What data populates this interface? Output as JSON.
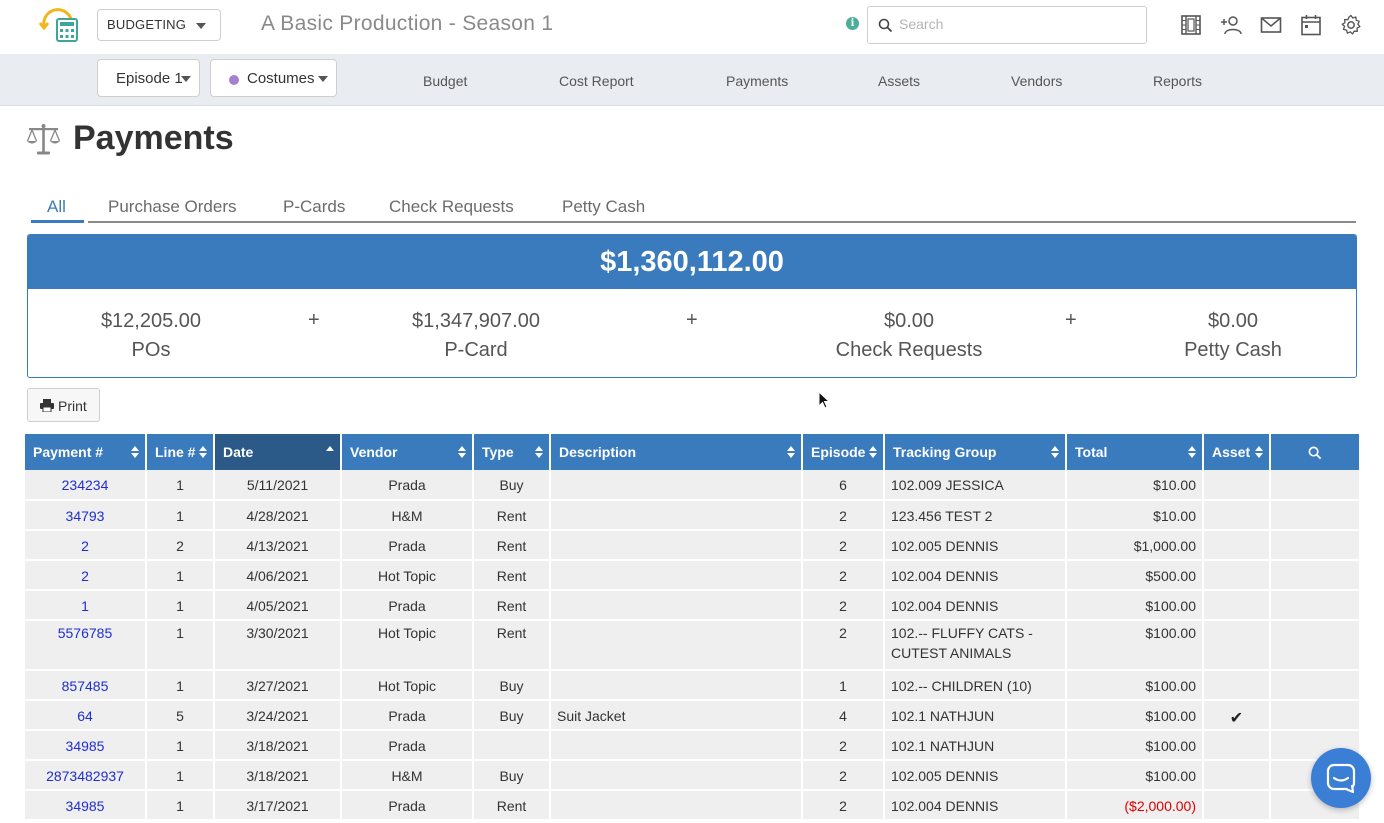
{
  "header": {
    "module": "BUDGETING",
    "project_title": "A Basic Production - Season 1",
    "search_placeholder": "Search",
    "icons": [
      "film-icon",
      "add-user-icon",
      "mail-icon",
      "calendar-icon",
      "gear-icon"
    ]
  },
  "subnav": {
    "episode": "Episode 1",
    "department": "Costumes",
    "department_color": "#a77fd0",
    "links": [
      "Budget",
      "Cost Report",
      "Payments",
      "Assets",
      "Vendors",
      "Reports"
    ]
  },
  "page": {
    "title": "Payments",
    "icon": "scales-icon"
  },
  "tabs": [
    "All",
    "Purchase Orders",
    "P-Cards",
    "Check Requests",
    "Petty Cash"
  ],
  "active_tab": "All",
  "summary": {
    "total": "$1,360,112.00",
    "items": [
      {
        "amount": "$12,205.00",
        "label": "POs"
      },
      {
        "amount": "$1,347,907.00",
        "label": "P-Card"
      },
      {
        "amount": "$0.00",
        "label": "Check Requests"
      },
      {
        "amount": "$0.00",
        "label": "Petty Cash"
      }
    ],
    "plus": "+"
  },
  "print_label": "Print",
  "table": {
    "columns": [
      "Payment #",
      "Line #",
      "Date",
      "Vendor",
      "Type",
      "Description",
      "Episode",
      "Tracking Group",
      "Total",
      "Asset"
    ],
    "sorted_column": "Date",
    "rows": [
      {
        "payment": "234234",
        "line": "1",
        "date": "5/11/2021",
        "vendor": "Prada",
        "type": "Buy",
        "description": "",
        "episode": "6",
        "tracking": "102.009 JESSICA",
        "total": "$10.00",
        "asset": ""
      },
      {
        "payment": "34793",
        "line": "1",
        "date": "4/28/2021",
        "vendor": "H&M",
        "type": "Rent",
        "description": "",
        "episode": "2",
        "tracking": "123.456 TEST 2",
        "total": "$10.00",
        "asset": ""
      },
      {
        "payment": "2",
        "line": "2",
        "date": "4/13/2021",
        "vendor": "Prada",
        "type": "Rent",
        "description": "",
        "episode": "2",
        "tracking": "102.005 DENNIS",
        "total": "$1,000.00",
        "asset": ""
      },
      {
        "payment": "2",
        "line": "1",
        "date": "4/06/2021",
        "vendor": "Hot Topic",
        "type": "Rent",
        "description": "",
        "episode": "2",
        "tracking": "102.004 DENNIS",
        "total": "$500.00",
        "asset": ""
      },
      {
        "payment": "1",
        "line": "1",
        "date": "4/05/2021",
        "vendor": "Prada",
        "type": "Rent",
        "description": "",
        "episode": "2",
        "tracking": "102.004 DENNIS",
        "total": "$100.00",
        "asset": ""
      },
      {
        "payment": "5576785",
        "line": "1",
        "date": "3/30/2021",
        "vendor": "Hot Topic",
        "type": "Rent",
        "description": "",
        "episode": "2",
        "tracking": "102.-- FLUFFY CATS - CUTEST ANIMALS",
        "total": "$100.00",
        "asset": ""
      },
      {
        "payment": "857485",
        "line": "1",
        "date": "3/27/2021",
        "vendor": "Hot Topic",
        "type": "Buy",
        "description": "",
        "episode": "1",
        "tracking": "102.-- CHILDREN (10)",
        "total": "$100.00",
        "asset": ""
      },
      {
        "payment": "64",
        "line": "5",
        "date": "3/24/2021",
        "vendor": "Prada",
        "type": "Buy",
        "description": "Suit Jacket",
        "episode": "4",
        "tracking": "102.1 NATHJUN",
        "total": "$100.00",
        "asset": "✔"
      },
      {
        "payment": "34985",
        "line": "1",
        "date": "3/18/2021",
        "vendor": "Prada",
        "type": "",
        "description": "",
        "episode": "2",
        "tracking": "102.1 NATHJUN",
        "total": "$100.00",
        "asset": ""
      },
      {
        "payment": "2873482937",
        "line": "1",
        "date": "3/18/2021",
        "vendor": "H&M",
        "type": "Buy",
        "description": "",
        "episode": "2",
        "tracking": "102.005 DENNIS",
        "total": "$100.00",
        "asset": ""
      },
      {
        "payment": "34985",
        "line": "1",
        "date": "3/17/2021",
        "vendor": "Prada",
        "type": "Rent",
        "description": "",
        "episode": "2",
        "tracking": "102.004 DENNIS",
        "total": "($2,000.00)",
        "asset": ""
      }
    ]
  },
  "colors": {
    "accent": "#3a7bbd",
    "sorted_header": "#2b5a89",
    "link": "#1f2ed0",
    "negative": "#e00000",
    "chat": "#3a7ed6"
  }
}
